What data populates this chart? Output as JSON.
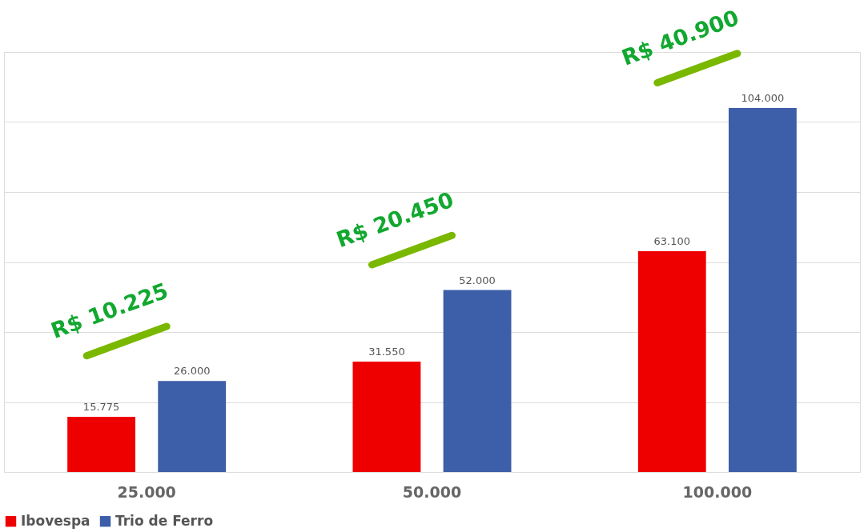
{
  "chart_data": {
    "type": "bar",
    "categories": [
      "25.000",
      "50.000",
      "100.000"
    ],
    "series": [
      {
        "name": "Ibovespa",
        "color": "#ee0000",
        "values": [
          15775,
          31550,
          63100
        ],
        "value_labels": [
          "15.775",
          "31.550",
          "63.100"
        ]
      },
      {
        "name": "Trio de Ferro",
        "color": "#3d5ea8",
        "values": [
          26000,
          52000,
          104000
        ],
        "value_labels": [
          "26.000",
          "52.000",
          "104.000"
        ]
      }
    ],
    "ylim": [
      0,
      120000
    ],
    "yticks": [
      {
        "value": 0,
        "label": null
      },
      {
        "value": 20000,
        "label": null
      },
      {
        "value": 40000,
        "label": null
      },
      {
        "value": 60000,
        "label": null
      },
      {
        "value": 80000,
        "label": null
      },
      {
        "value": 100000,
        "label": null
      },
      {
        "value": 120000,
        "label": null
      }
    ],
    "tick_labels": "x",
    "grid": "y",
    "legend": "bottom",
    "annotations": [
      "R$ 10.225",
      "R$ 20.450",
      "R$ 40.900"
    ]
  }
}
